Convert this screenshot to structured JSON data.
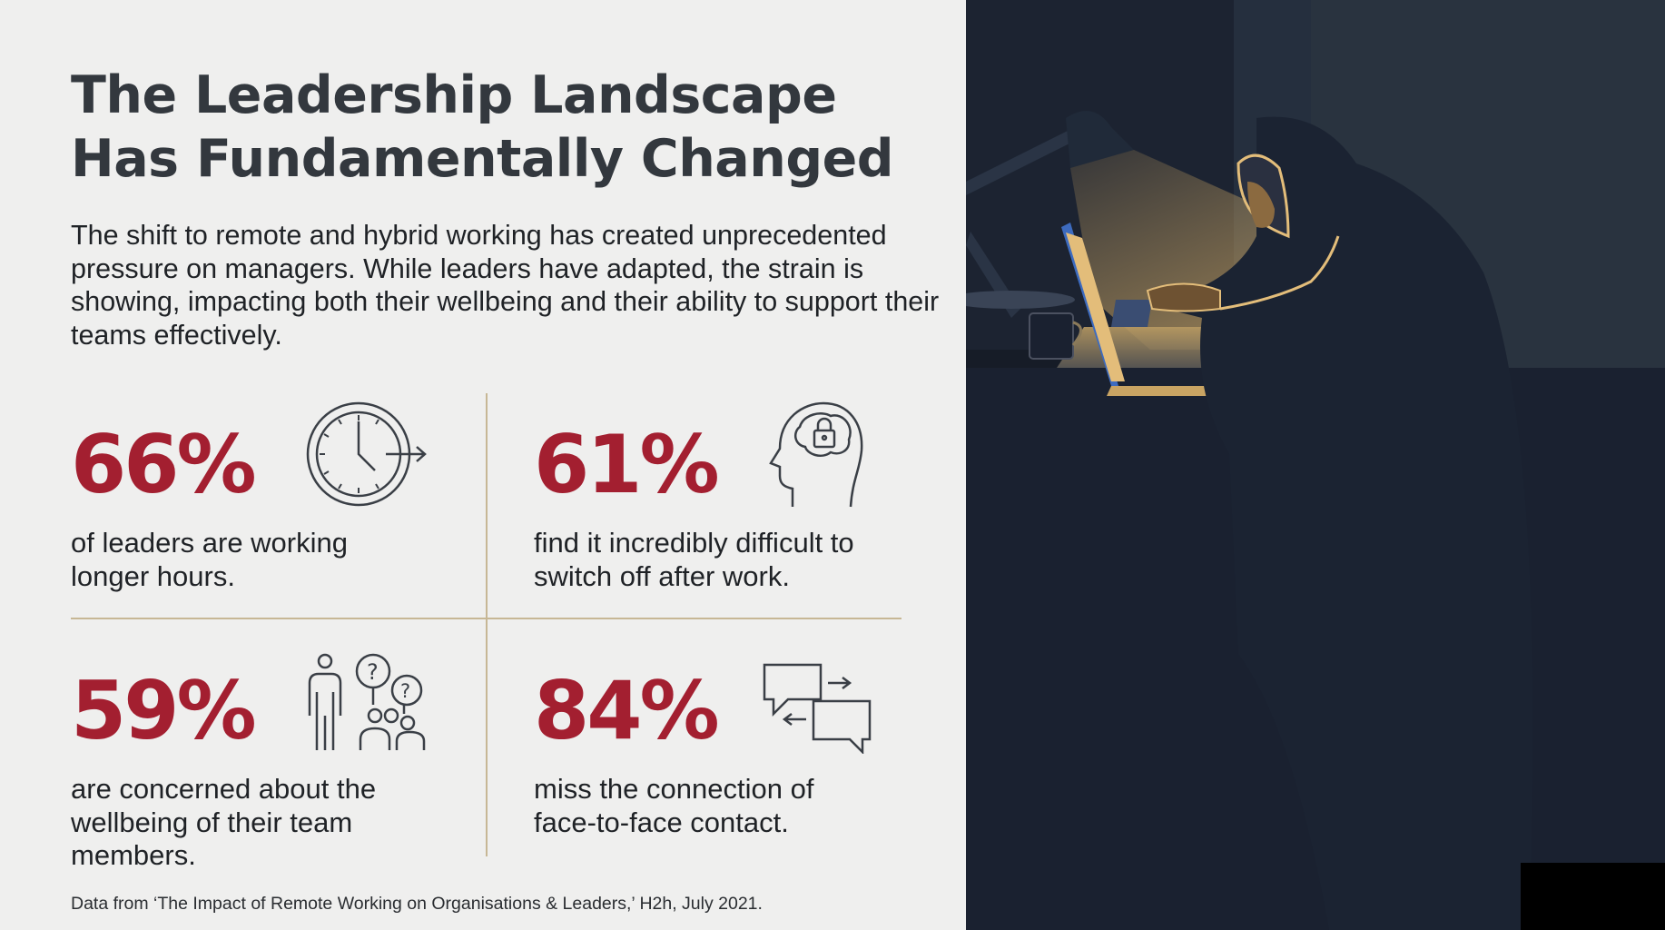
{
  "title": "The Leadership Landscape Has Fundamentally Changed",
  "intro": "The shift to remote and hybrid working has created unprecedented pressure on managers. While leaders have adapted, the strain is showing, impacting both their wellbeing and their ability to support their teams effectively.",
  "stats": [
    {
      "value": "66%",
      "text": "of leaders are working longer hours.",
      "icon": "clock-arrow-icon"
    },
    {
      "value": "61%",
      "text": "find it incredibly difficult to switch off after work.",
      "icon": "head-lock-icon"
    },
    {
      "value": "59%",
      "text": "are concerned about the wellbeing of their team members.",
      "icon": "person-questions-icon"
    },
    {
      "value": "84%",
      "text": "miss the connection of face-to-face contact.",
      "icon": "chat-bubbles-icon"
    }
  ],
  "footer": "Data from ‘The Impact of Remote Working on Organisations & Leaders,’ H2h, July 2021.",
  "colors": {
    "accent": "#a31f30",
    "divider": "#c7b795",
    "text": "#33383e",
    "night": "#1c2331"
  }
}
